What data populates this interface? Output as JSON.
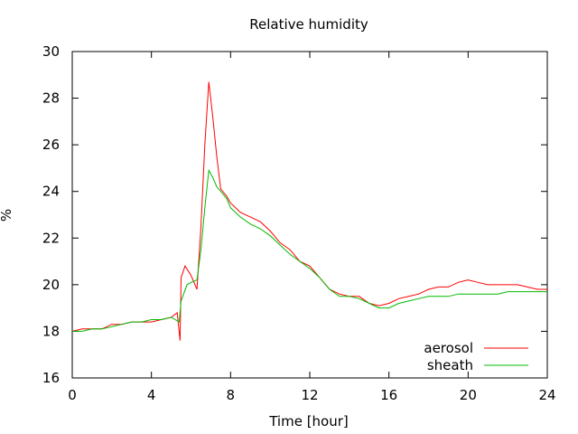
{
  "chart_data": {
    "type": "line",
    "title": "Relative humidity",
    "xlabel": "Time [hour]",
    "ylabel": "%",
    "xlim": [
      0,
      24
    ],
    "ylim": [
      16,
      30
    ],
    "xticks": [
      0,
      4,
      8,
      12,
      16,
      20,
      24
    ],
    "yticks": [
      16,
      18,
      20,
      22,
      24,
      26,
      28,
      30
    ],
    "xtick_labels": [
      "0",
      "4",
      "8",
      "12",
      "16",
      "20",
      "24"
    ],
    "ytick_labels": [
      "16",
      "18",
      "20",
      "22",
      "24",
      "26",
      "28",
      "30"
    ],
    "legend_position": "bottom-right",
    "grid": false,
    "series": [
      {
        "name": "aerosol",
        "color": "#ff0000",
        "points": [
          [
            0,
            18.0
          ],
          [
            0.5,
            18.1
          ],
          [
            1,
            18.1
          ],
          [
            1.5,
            18.1
          ],
          [
            2,
            18.3
          ],
          [
            2.5,
            18.3
          ],
          [
            3,
            18.4
          ],
          [
            3.5,
            18.4
          ],
          [
            4,
            18.4
          ],
          [
            4.5,
            18.5
          ],
          [
            5,
            18.6
          ],
          [
            5.3,
            18.8
          ],
          [
            5.45,
            17.6
          ],
          [
            5.5,
            20.3
          ],
          [
            5.7,
            20.8
          ],
          [
            6,
            20.4
          ],
          [
            6.3,
            19.8
          ],
          [
            6.5,
            22.5
          ],
          [
            6.7,
            26.0
          ],
          [
            6.9,
            28.7
          ],
          [
            7.1,
            27.2
          ],
          [
            7.3,
            25.5
          ],
          [
            7.5,
            24.1
          ],
          [
            7.8,
            23.8
          ],
          [
            8,
            23.5
          ],
          [
            8.5,
            23.1
          ],
          [
            9,
            22.9
          ],
          [
            9.5,
            22.7
          ],
          [
            10,
            22.3
          ],
          [
            10.5,
            21.8
          ],
          [
            11,
            21.5
          ],
          [
            11.5,
            21.0
          ],
          [
            12,
            20.8
          ],
          [
            12.5,
            20.3
          ],
          [
            13,
            19.8
          ],
          [
            13.5,
            19.6
          ],
          [
            14,
            19.5
          ],
          [
            14.5,
            19.5
          ],
          [
            15,
            19.2
          ],
          [
            15.5,
            19.1
          ],
          [
            16,
            19.2
          ],
          [
            16.5,
            19.4
          ],
          [
            17,
            19.5
          ],
          [
            17.5,
            19.6
          ],
          [
            18,
            19.8
          ],
          [
            18.5,
            19.9
          ],
          [
            19,
            19.9
          ],
          [
            19.5,
            20.1
          ],
          [
            20,
            20.2
          ],
          [
            20.5,
            20.1
          ],
          [
            21,
            20.0
          ],
          [
            21.5,
            20.0
          ],
          [
            22,
            20.0
          ],
          [
            22.5,
            20.0
          ],
          [
            23,
            19.9
          ],
          [
            23.5,
            19.8
          ],
          [
            24,
            19.8
          ]
        ]
      },
      {
        "name": "sheath",
        "color": "#00bb00",
        "points": [
          [
            0,
            18.0
          ],
          [
            0.5,
            18.0
          ],
          [
            1,
            18.1
          ],
          [
            1.5,
            18.1
          ],
          [
            2,
            18.2
          ],
          [
            2.5,
            18.3
          ],
          [
            3,
            18.4
          ],
          [
            3.5,
            18.4
          ],
          [
            4,
            18.5
          ],
          [
            4.5,
            18.5
          ],
          [
            5,
            18.6
          ],
          [
            5.4,
            18.4
          ],
          [
            5.5,
            19.3
          ],
          [
            5.8,
            20.0
          ],
          [
            6,
            20.1
          ],
          [
            6.3,
            20.2
          ],
          [
            6.5,
            21.5
          ],
          [
            6.7,
            23.3
          ],
          [
            6.9,
            24.9
          ],
          [
            7.1,
            24.6
          ],
          [
            7.3,
            24.2
          ],
          [
            7.5,
            24.0
          ],
          [
            7.8,
            23.7
          ],
          [
            8,
            23.3
          ],
          [
            8.5,
            22.9
          ],
          [
            9,
            22.6
          ],
          [
            9.5,
            22.4
          ],
          [
            10,
            22.1
          ],
          [
            10.5,
            21.7
          ],
          [
            11,
            21.3
          ],
          [
            11.5,
            21.0
          ],
          [
            12,
            20.7
          ],
          [
            12.5,
            20.3
          ],
          [
            13,
            19.8
          ],
          [
            13.5,
            19.5
          ],
          [
            14,
            19.5
          ],
          [
            14.5,
            19.4
          ],
          [
            15,
            19.2
          ],
          [
            15.5,
            19.0
          ],
          [
            16,
            19.0
          ],
          [
            16.5,
            19.2
          ],
          [
            17,
            19.3
          ],
          [
            17.5,
            19.4
          ],
          [
            18,
            19.5
          ],
          [
            18.5,
            19.5
          ],
          [
            19,
            19.5
          ],
          [
            19.5,
            19.6
          ],
          [
            20,
            19.6
          ],
          [
            20.5,
            19.6
          ],
          [
            21,
            19.6
          ],
          [
            21.5,
            19.6
          ],
          [
            22,
            19.7
          ],
          [
            22.5,
            19.7
          ],
          [
            23,
            19.7
          ],
          [
            23.5,
            19.7
          ],
          [
            24,
            19.7
          ]
        ]
      }
    ]
  }
}
